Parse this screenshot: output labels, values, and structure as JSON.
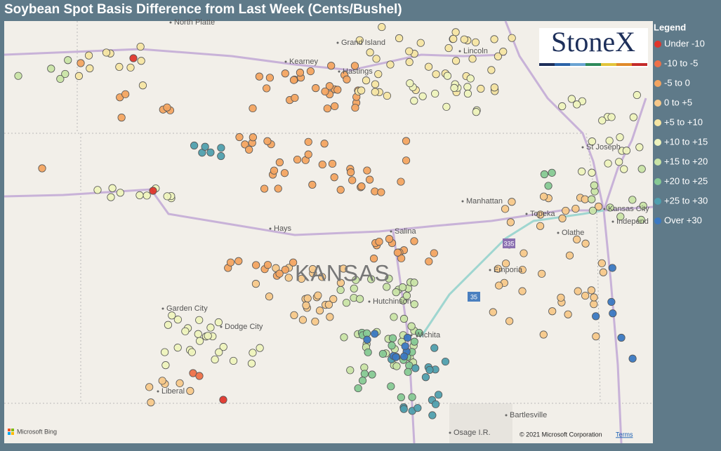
{
  "header": {
    "title": "Soybean Spot Basis Difference from Last Week (Cents/Bushel)"
  },
  "legend": {
    "title": "Legend",
    "items": [
      {
        "label": "Under -10",
        "color": "#e0352b"
      },
      {
        "label": "-10 to -5",
        "color": "#ee7048"
      },
      {
        "label": "-5 to 0",
        "color": "#f3a461"
      },
      {
        "label": "0 to +5",
        "color": "#f7c88a"
      },
      {
        "label": "+5 to +10",
        "color": "#f6e5a3"
      },
      {
        "label": "+10 to +15",
        "color": "#eef3bd"
      },
      {
        "label": "+15 to +20",
        "color": "#c9e4a6"
      },
      {
        "label": "+20 to +25",
        "color": "#86c994"
      },
      {
        "label": "+25 to +30",
        "color": "#4f9fae"
      },
      {
        "label": "Over +30",
        "color": "#3a78c2"
      }
    ]
  },
  "logo": {
    "text": "StoneX"
  },
  "map": {
    "places": [
      "North Platte",
      "Grand Island",
      "Kearney",
      "Hastings",
      "Lincoln",
      "St Joseph",
      "Manhattan",
      "Topeka",
      "Kansas City",
      "Independ",
      "Olathe",
      "Hays",
      "Salina",
      "Emporia",
      "Hutchinson",
      "Wichita",
      "Garden City",
      "Dodge City",
      "Liberal",
      "Bartlesville",
      "Osage I.R."
    ],
    "state": "KANSAS",
    "shields": [
      "335",
      "35"
    ],
    "provider": "Microsoft Bing",
    "copyright": "© 2021 Microsoft Corporation",
    "terms": "Terms"
  }
}
